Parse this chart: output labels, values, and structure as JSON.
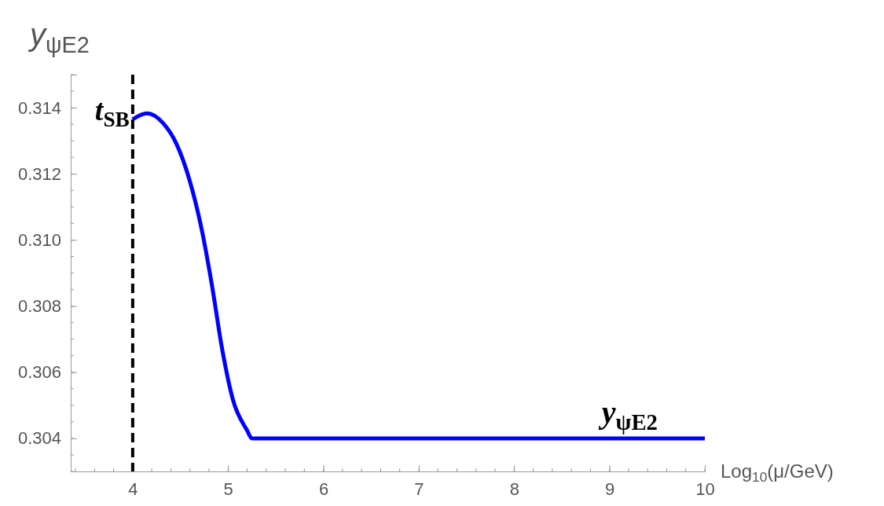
{
  "chart_data": {
    "type": "line",
    "xlabel": "Log$_{10}$(μ/GeV)",
    "ylabel": "y$_{ψE2}$",
    "xlim": [
      3.35,
      10
    ],
    "xticks": [
      4,
      5,
      6,
      7,
      8,
      9,
      10
    ],
    "ylim": [
      0.303,
      0.315
    ],
    "yticks": [
      0.304,
      0.306,
      0.308,
      {
        "value": 0.31,
        "label": "0.310"
      },
      0.312,
      0.314
    ],
    "marker": "none",
    "line_style": "solid",
    "series": [
      {
        "color": "#0000ff",
        "x": [
          4,
          4.15,
          4.32,
          4.46,
          4.59,
          4.73,
          4.83,
          4.94,
          5.05,
          5.2,
          5.25,
          6,
          7,
          8,
          9,
          10
        ],
        "values": [
          0.31365,
          0.31383,
          0.31353,
          0.3129,
          0.31187,
          0.31023,
          0.30865,
          0.30667,
          0.30518,
          0.30424,
          0.304,
          0.304,
          0.304,
          0.304,
          0.304,
          0.304
        ]
      }
    ],
    "ref_lines": [
      {
        "axis": "x",
        "value": 4,
        "label": "t$_{SB}$",
        "color": "#000000",
        "line_style": "dashed"
      }
    ],
    "annotations": [
      "y$_{ψE2}$"
    ]
  }
}
